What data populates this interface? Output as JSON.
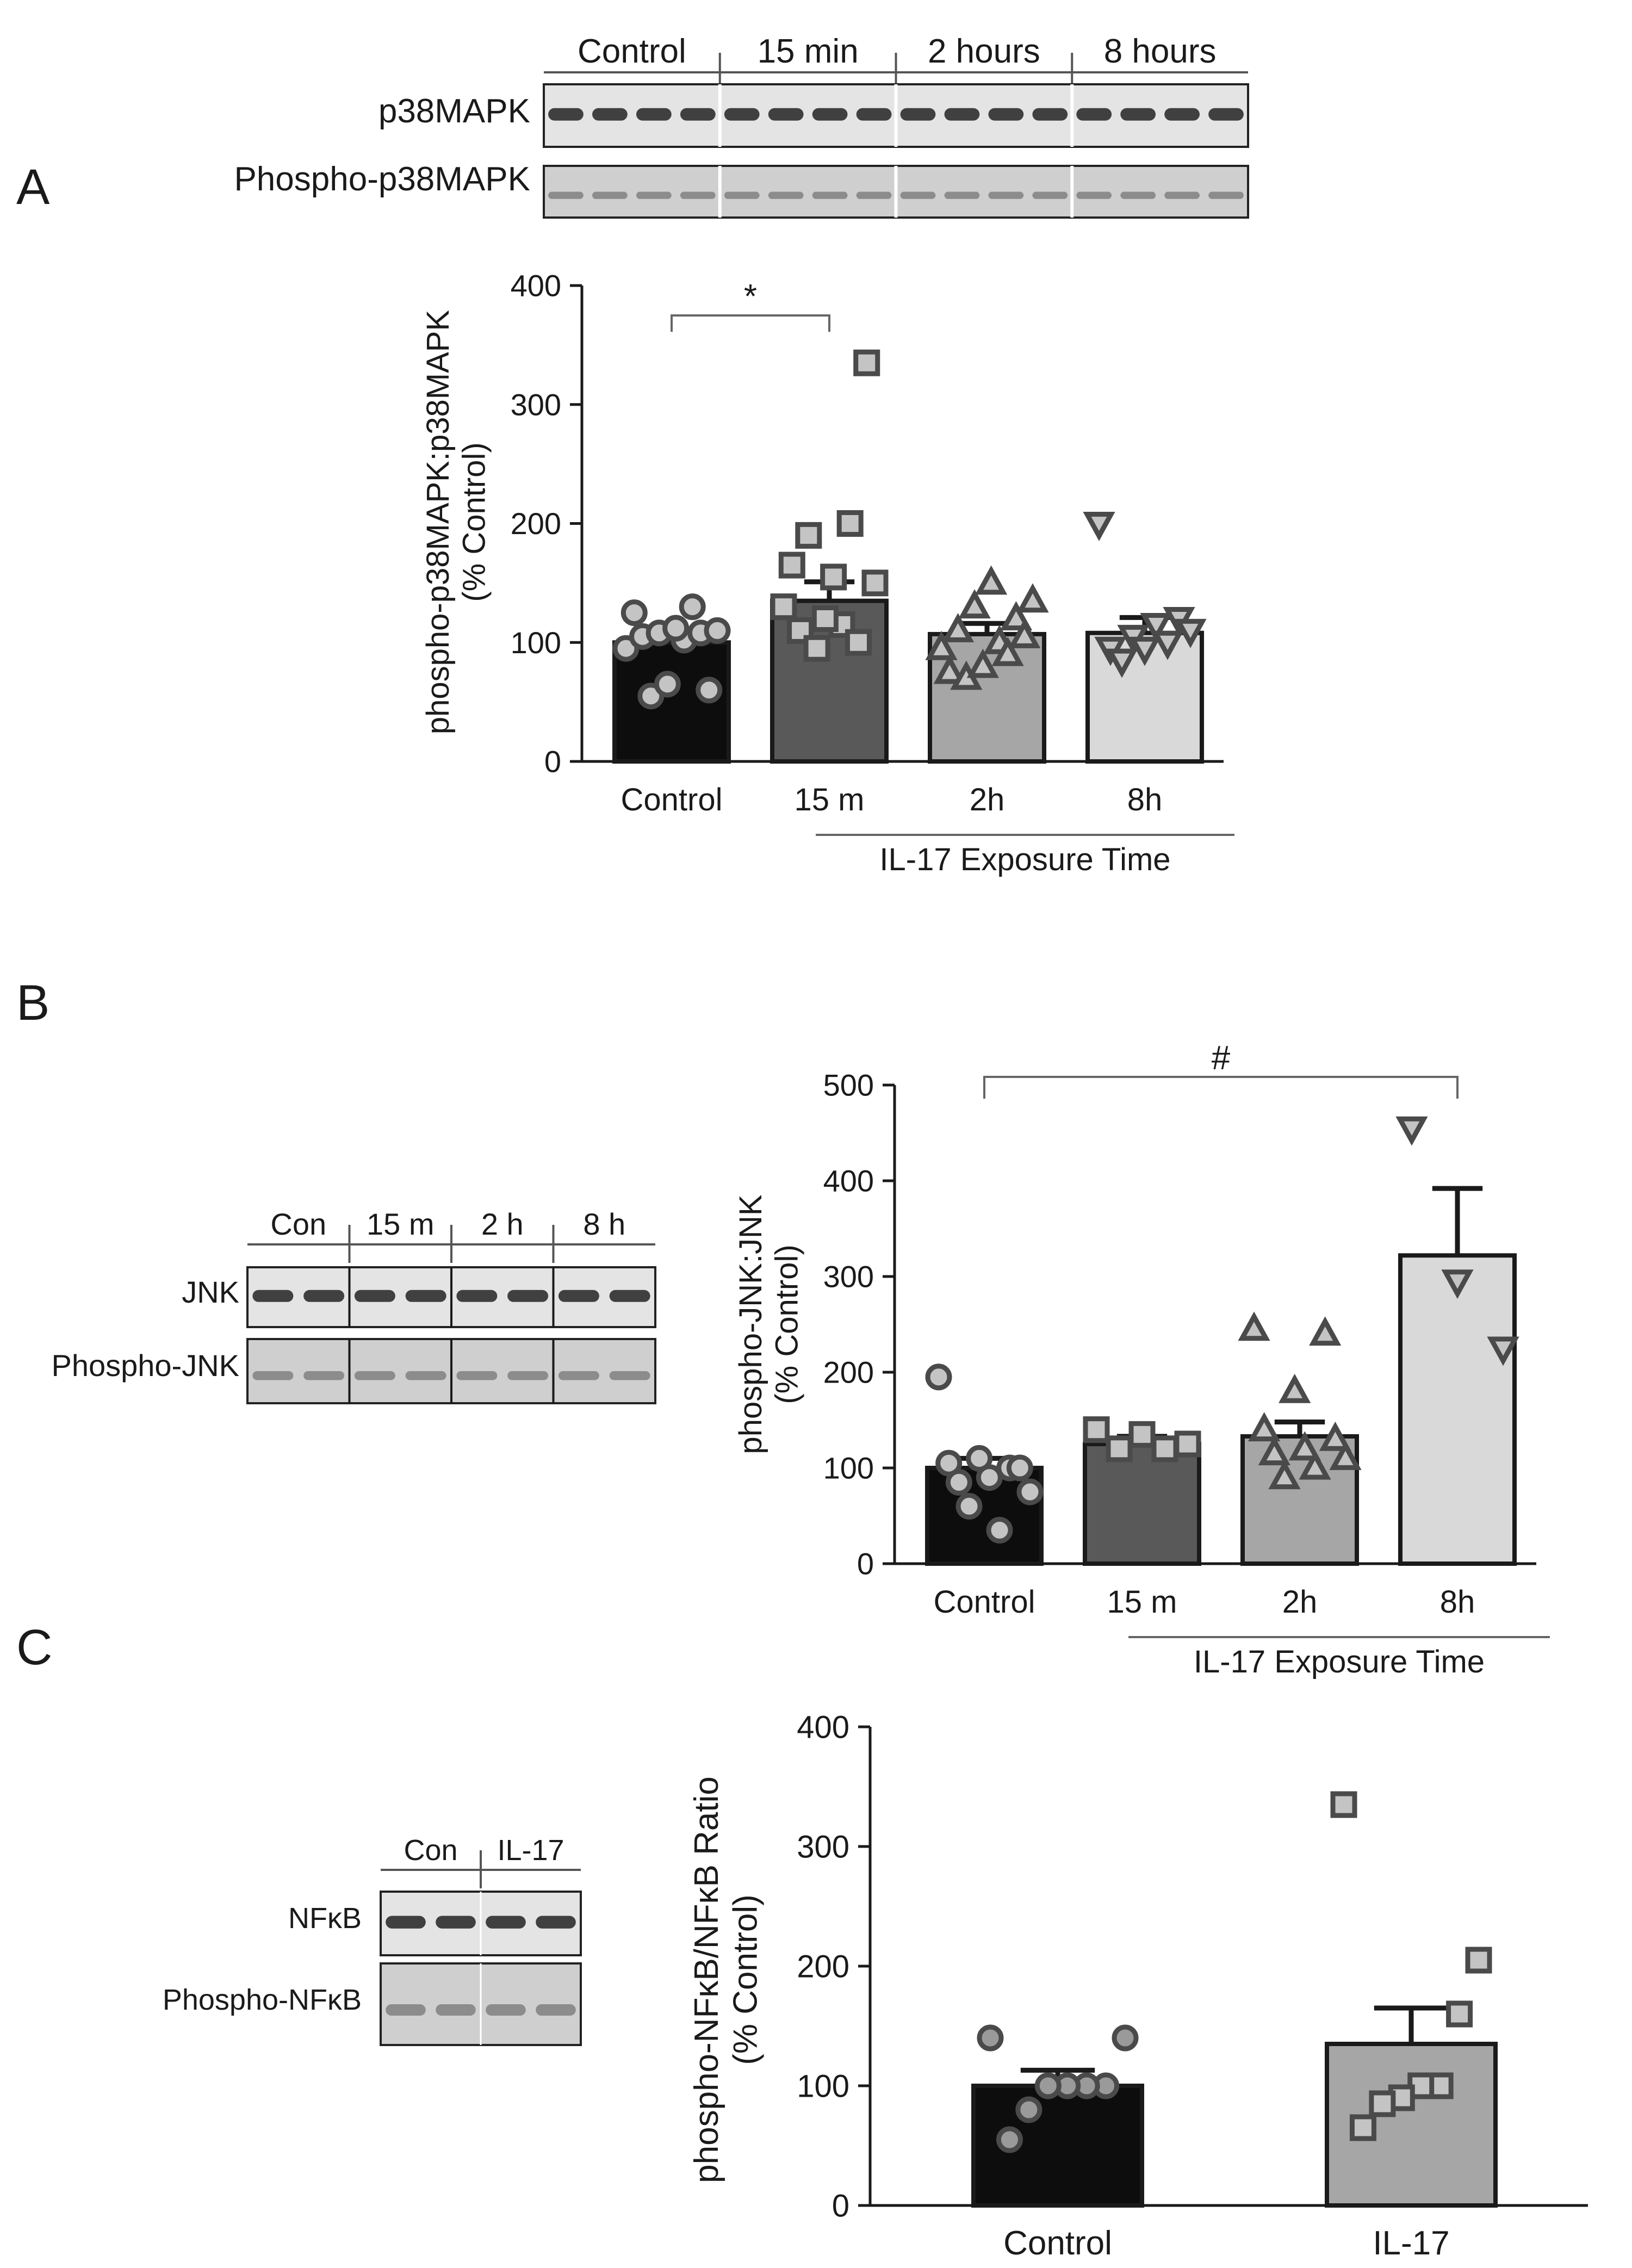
{
  "panels": [
    {
      "letter": "A",
      "blot": {
        "groups": [
          "Control",
          "15 min",
          "2 hours",
          "8 hours"
        ],
        "rows": [
          "p38MAPK",
          "Phospho-p38MAPK"
        ]
      },
      "bracket_label": "IL-17 Exposure Time",
      "significance": {
        "symbol": "*",
        "from": "Control",
        "to": "15 m"
      }
    },
    {
      "letter": "B",
      "blot": {
        "groups": [
          "Con",
          "15 m",
          "2 h",
          "8 h"
        ],
        "rows": [
          "JNK",
          "Phospho-JNK"
        ]
      },
      "bracket_label": "IL-17 Exposure Time",
      "significance": {
        "symbol": "#",
        "from": "Control",
        "to": "8h"
      }
    },
    {
      "letter": "C",
      "blot": {
        "groups": [
          "Con",
          "IL-17"
        ],
        "rows": [
          "NFκB",
          "Phospho-NFκB"
        ]
      },
      "bracket_label": "",
      "significance": null
    }
  ],
  "chart_data": [
    {
      "type": "bar",
      "panel": "A",
      "categories": [
        "Control",
        "15 m",
        "2h",
        "8h"
      ],
      "values": [
        100,
        135,
        107,
        108
      ],
      "errors": [
        9,
        16,
        9,
        13
      ],
      "ylabel": "phospho-p38MAPK:p38MAPK\n(% Control)",
      "ylim": [
        0,
        400
      ],
      "yticks": [
        0,
        100,
        200,
        300,
        400
      ],
      "bar_colors": [
        "#0d0d0d",
        "#595959",
        "#a6a6a6",
        "#d9d9d9"
      ],
      "markers": [
        "circle",
        "square",
        "triangle-up",
        "triangle-down"
      ],
      "points": [
        [
          95,
          102,
          105,
          108,
          108,
          110,
          112,
          125,
          130,
          55,
          60,
          65
        ],
        [
          130,
          115,
          110,
          100,
          95,
          150,
          155,
          165,
          200,
          190,
          335,
          120
        ],
        [
          95,
          100,
          110,
          120,
          130,
          135,
          150,
          75,
          90,
          70,
          105,
          80
        ],
        [
          200,
          120,
          115,
          105,
          95,
          110,
          100,
          95,
          85
        ]
      ]
    },
    {
      "type": "bar",
      "panel": "B",
      "categories": [
        "Control",
        "15 m",
        "2h",
        "8h"
      ],
      "values": [
        100,
        125,
        133,
        322
      ],
      "errors": [
        10,
        8,
        15,
        70
      ],
      "ylabel": "phospho-JNK:JNK\n(% Control)",
      "ylim": [
        0,
        500
      ],
      "yticks": [
        0,
        100,
        200,
        300,
        400,
        500
      ],
      "bar_colors": [
        "#0d0d0d",
        "#595959",
        "#a6a6a6",
        "#d9d9d9"
      ],
      "markers": [
        "circle",
        "square",
        "triangle-up",
        "triangle-down"
      ],
      "points": [
        [
          195,
          100,
          110,
          105,
          100,
          90,
          85,
          75,
          35,
          60
        ],
        [
          140,
          135,
          125,
          120,
          120
        ],
        [
          245,
          240,
          180,
          140,
          130,
          120,
          115,
          110,
          100,
          90
        ],
        [
          455,
          295,
          225
        ]
      ]
    },
    {
      "type": "bar",
      "panel": "C",
      "categories": [
        "Control",
        "IL-17"
      ],
      "values": [
        100,
        135
      ],
      "errors": [
        13,
        30
      ],
      "ylabel": "phospho-NFκB/NFκB Ratio\n(% Control)",
      "ylim": [
        0,
        400
      ],
      "yticks": [
        0,
        100,
        200,
        300,
        400
      ],
      "bar_colors": [
        "#0d0d0d",
        "#a6a6a6"
      ],
      "markers": [
        "circle",
        "square"
      ],
      "points": [
        [
          140,
          140,
          100,
          100,
          100,
          100,
          80,
          55
        ],
        [
          335,
          205,
          160,
          100,
          100,
          90,
          85,
          65
        ]
      ]
    }
  ]
}
